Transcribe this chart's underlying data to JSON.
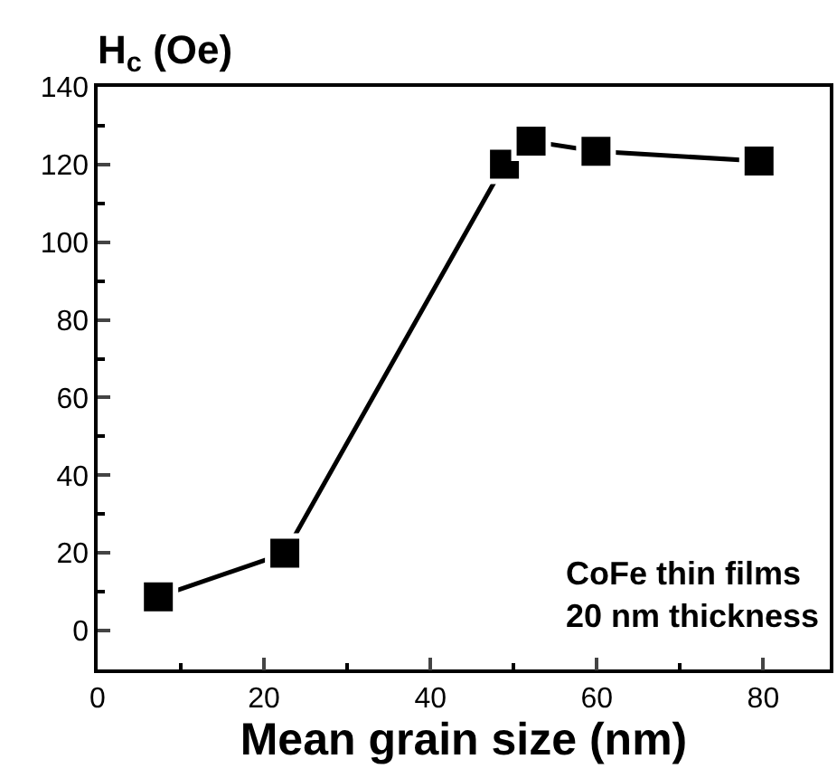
{
  "chart_data": {
    "type": "line",
    "xlabel": "Mean grain size (nm)",
    "ylabel": "H$_{c}$ (Oe)",
    "x": [
      7.3,
      22.5,
      48.9,
      52.1,
      59.9,
      79.5
    ],
    "series": [
      {
        "color": "#000000",
        "values": [
          8.7,
          19.9,
          120.1,
          126,
          123.4,
          120.9
        ]
      }
    ],
    "xlim": [
      0,
      88
    ],
    "xticks": [
      0,
      20,
      40,
      60,
      80
    ],
    "ylim": [
      -10,
      140
    ],
    "yticks": [
      0,
      20,
      40,
      60,
      80,
      100,
      120,
      140
    ],
    "marker": "square",
    "line_style": "solid",
    "annotations": [
      "CoFe thin films\n20 nm thickness"
    ]
  }
}
